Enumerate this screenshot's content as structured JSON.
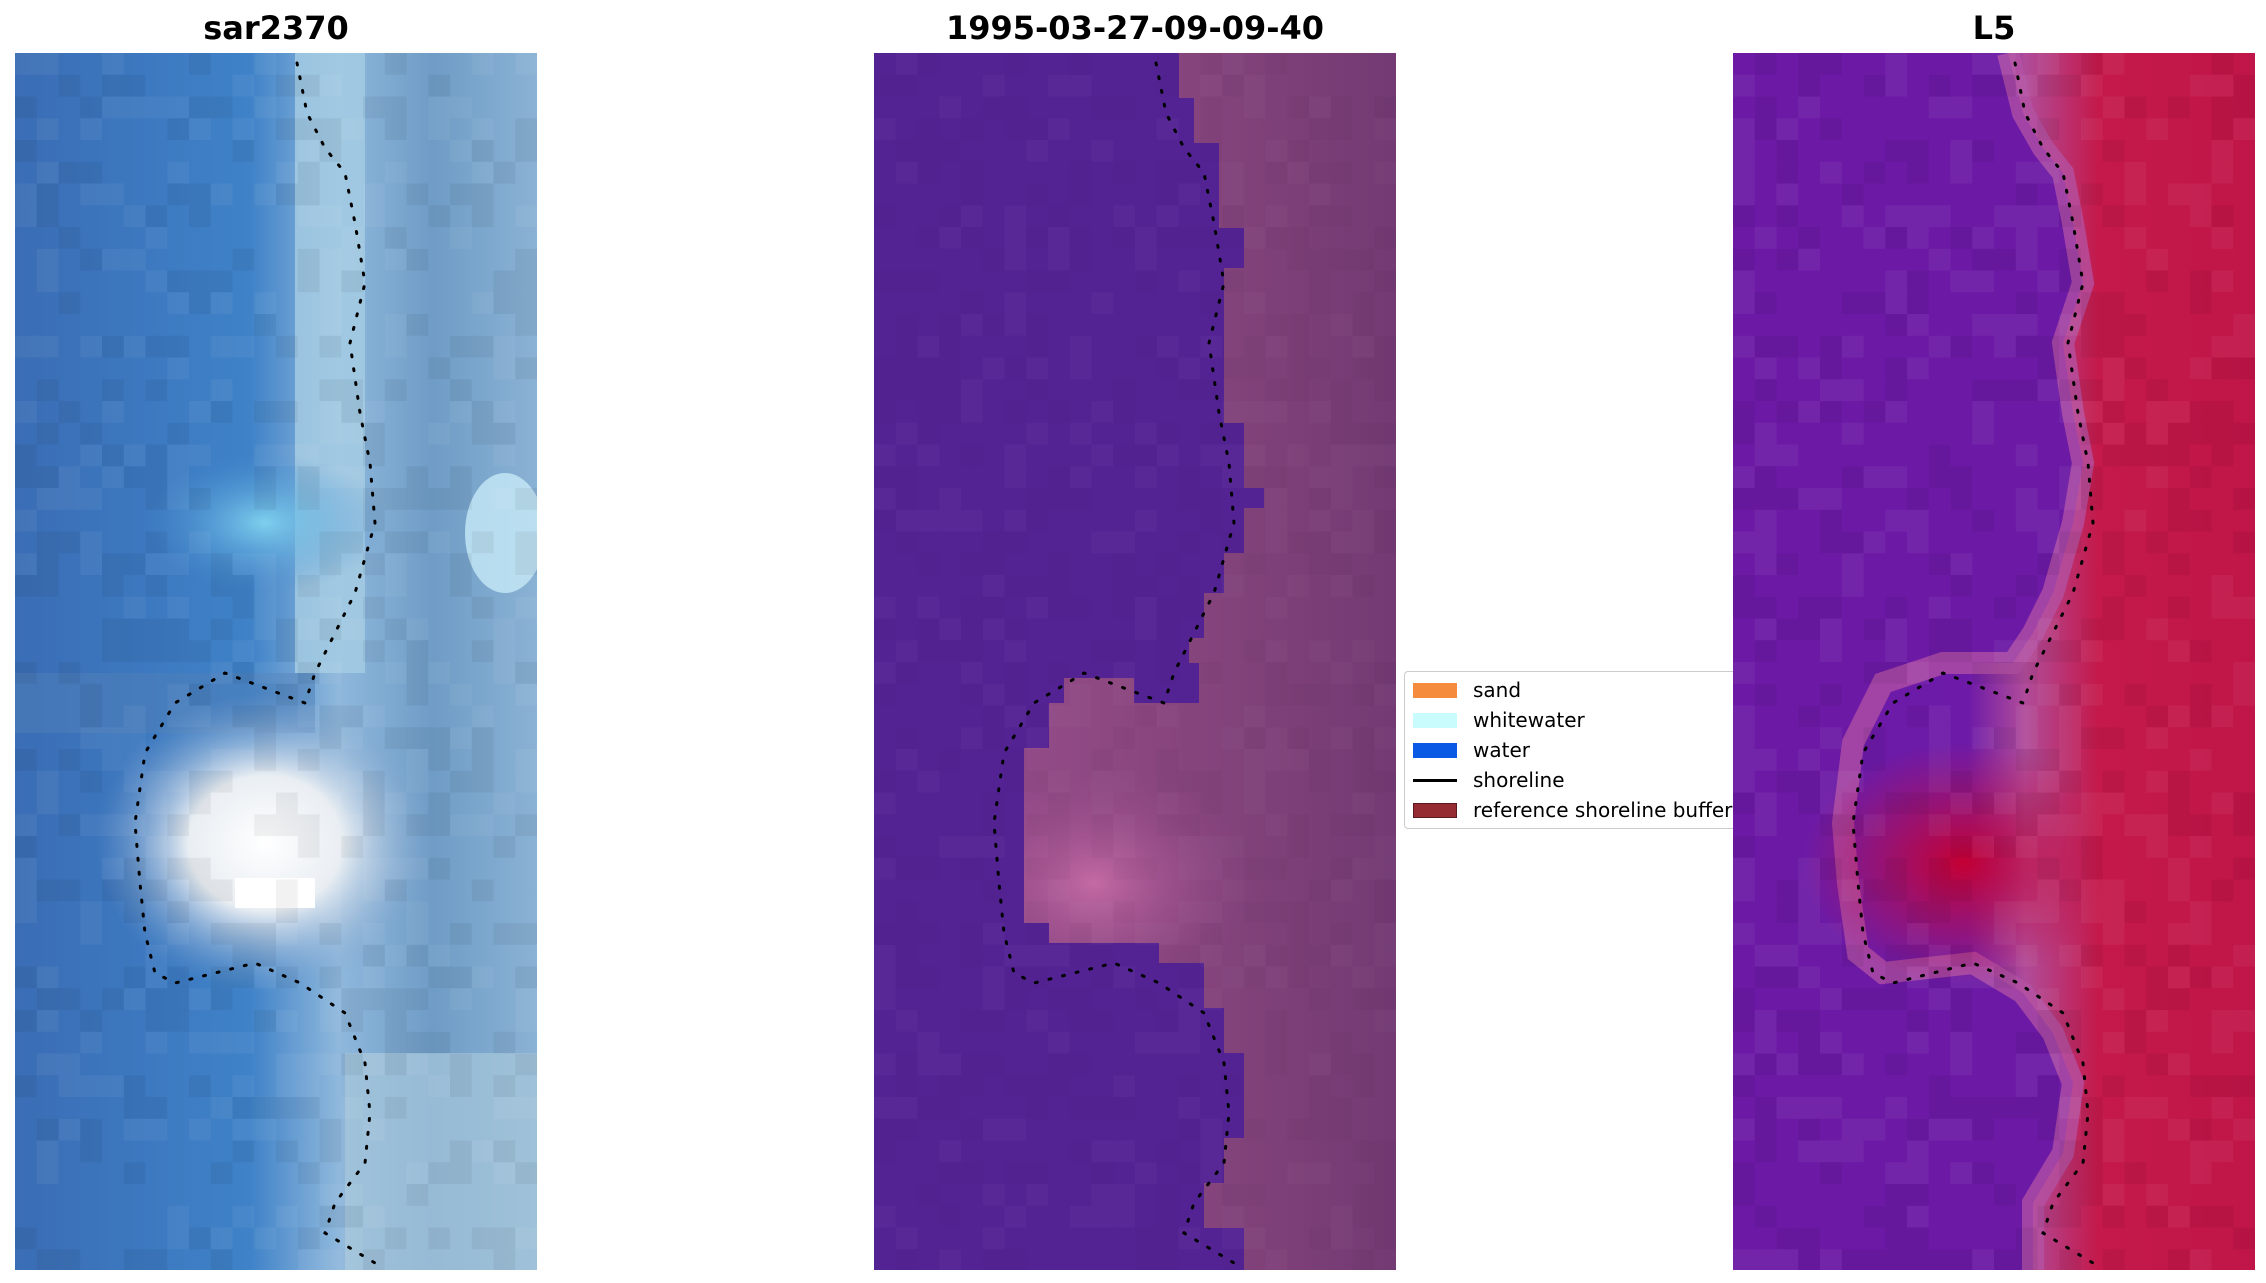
{
  "panels": [
    {
      "title": "sar2370"
    },
    {
      "title": "1995-03-27-09-09-40"
    },
    {
      "title": "L5"
    }
  ],
  "legend": {
    "items": [
      {
        "label": "sand",
        "color": "#f58b3c"
      },
      {
        "label": "whitewater",
        "color": "#c9fcfc"
      },
      {
        "label": "water",
        "color": "#0a5ae6"
      },
      {
        "label": "shoreline",
        "color": "#000000"
      },
      {
        "label": "reference shoreline buffer",
        "color": "#952c34"
      }
    ]
  },
  "colors": {
    "rgb_water": "#3f78b8",
    "rgb_foam": "#a9d1e4",
    "classified_water": "#532394",
    "classified_land": "#8a4a8a",
    "index_low": "#6a1aa6",
    "index_high": "#c4154a"
  }
}
